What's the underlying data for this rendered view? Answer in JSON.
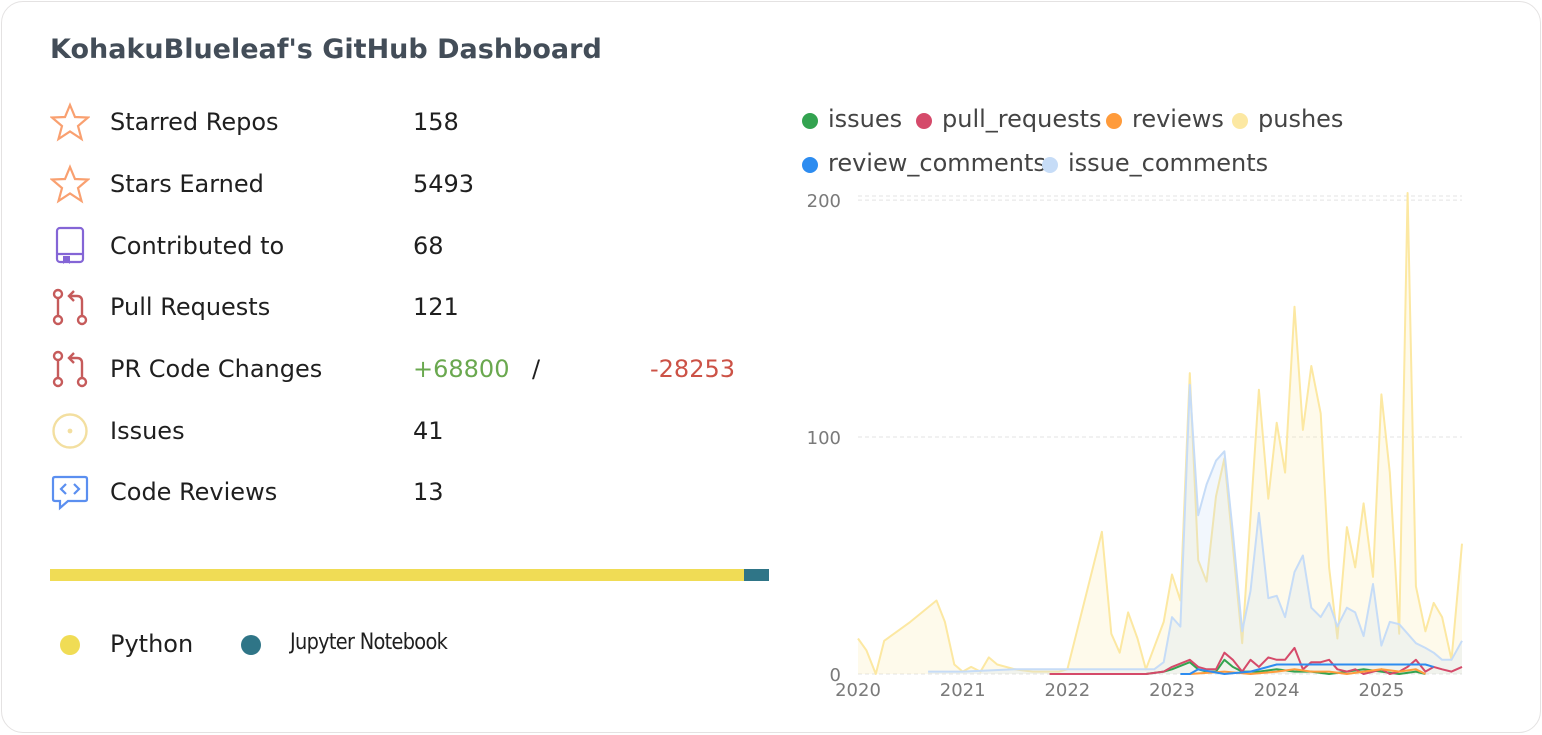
{
  "title": "KohakuBlueleaf's GitHub Dashboard",
  "stats": [
    {
      "icon": "star-icon",
      "label": "Starred Repos",
      "value": "158"
    },
    {
      "icon": "star-icon",
      "label": "Stars Earned",
      "value": "5493"
    },
    {
      "icon": "repo-icon",
      "label": "Contributed to",
      "value": "68"
    },
    {
      "icon": "pull-request-icon",
      "label": "Pull Requests",
      "value": "121"
    },
    {
      "icon": "pull-request-icon",
      "label": "PR Code Changes",
      "additions": "+68800",
      "separator": "/",
      "deletions": "-28253"
    },
    {
      "icon": "issue-icon",
      "label": "Issues",
      "value": "41"
    },
    {
      "icon": "code-review-icon",
      "label": "Code Reviews",
      "value": "13"
    }
  ],
  "languages": [
    {
      "name": "Python",
      "color": "#f0dc55",
      "share": 0.965
    },
    {
      "name": "Jupyter Notebook",
      "color": "#2f7587",
      "share": 0.035
    }
  ],
  "colors": {
    "star": "#f9a070",
    "repo": "#8465d6",
    "pull_request": "#c65b5b",
    "issue": "#f3dfa0",
    "code_review": "#5b8ff0"
  },
  "chart_data": {
    "type": "line",
    "x_ticks": [
      "2020",
      "2021",
      "2022",
      "2023",
      "2024",
      "2025"
    ],
    "y_ticks": [
      0,
      100,
      200
    ],
    "xlim": [
      2020.0,
      2025.77
    ],
    "ylim": [
      0,
      203
    ],
    "grid": "horizontal dashed",
    "legend_position": "top",
    "series": [
      {
        "name": "issues",
        "color": "#33a350",
        "fill": false,
        "x": [
          2021.83,
          2022.0,
          2022.5,
          2022.75,
          2022.92,
          2023.0,
          2023.17,
          2023.25,
          2023.33,
          2023.42,
          2023.5,
          2023.58,
          2023.67,
          2023.83,
          2024.0,
          2024.17,
          2024.33,
          2024.5,
          2024.67,
          2024.83,
          2025.0,
          2025.17,
          2025.33,
          2025.42
        ],
        "y": [
          0,
          0,
          0,
          0,
          1,
          2,
          5,
          2,
          1,
          1,
          6,
          3,
          1,
          1,
          2,
          1,
          1,
          0,
          1,
          2,
          1,
          0,
          1,
          0
        ]
      },
      {
        "name": "pull_requests",
        "color": "#d54a6a",
        "fill": false,
        "x": [
          2021.83,
          2022.0,
          2022.5,
          2022.75,
          2022.92,
          2023.0,
          2023.17,
          2023.25,
          2023.33,
          2023.42,
          2023.5,
          2023.58,
          2023.67,
          2023.75,
          2023.83,
          2023.92,
          2024.0,
          2024.08,
          2024.17,
          2024.25,
          2024.33,
          2024.42,
          2024.5,
          2024.58,
          2024.67,
          2024.75,
          2024.83,
          2024.92,
          2025.0,
          2025.08,
          2025.17,
          2025.25,
          2025.33,
          2025.42,
          2025.5,
          2025.58,
          2025.67,
          2025.77
        ],
        "y": [
          0,
          0,
          0,
          0,
          1,
          3,
          6,
          3,
          2,
          2,
          9,
          6,
          1,
          6,
          3,
          7,
          6,
          6,
          11,
          2,
          5,
          5,
          6,
          2,
          1,
          2,
          0,
          1,
          2,
          0,
          1,
          3,
          6,
          1,
          3,
          2,
          1,
          3
        ]
      },
      {
        "name": "reviews",
        "color": "#ff9b3b",
        "fill": false,
        "x": [
          2023.17,
          2023.5,
          2023.75,
          2024.0,
          2024.17,
          2024.33,
          2024.5,
          2024.67,
          2024.83,
          2025.0,
          2025.17,
          2025.33,
          2025.42
        ],
        "y": [
          0,
          1,
          0,
          1,
          2,
          1,
          1,
          0,
          1,
          2,
          1,
          2,
          0
        ]
      },
      {
        "name": "pushes",
        "color": "#fce8a2",
        "fill": true,
        "x": [
          2020.0,
          2020.08,
          2020.17,
          2020.25,
          2020.5,
          2020.75,
          2020.83,
          2020.92,
          2021.0,
          2021.08,
          2021.17,
          2021.25,
          2021.33,
          2021.5,
          2021.67,
          2021.75,
          2021.83,
          2021.92,
          2022.0,
          2022.33,
          2022.42,
          2022.5,
          2022.58,
          2022.67,
          2022.75,
          2022.92,
          2023.0,
          2023.08,
          2023.17,
          2023.25,
          2023.33,
          2023.42,
          2023.5,
          2023.67,
          2023.83,
          2023.92,
          2024.0,
          2024.08,
          2024.17,
          2024.25,
          2024.33,
          2024.42,
          2024.5,
          2024.58,
          2024.67,
          2024.75,
          2024.83,
          2024.92,
          2025.0,
          2025.08,
          2025.17,
          2025.25,
          2025.33,
          2025.42,
          2025.5,
          2025.58,
          2025.67,
          2025.77
        ],
        "y": [
          15,
          10,
          0,
          14,
          22,
          31,
          22,
          4,
          1,
          3,
          1,
          7,
          4,
          2,
          1,
          1,
          1,
          1,
          2,
          60,
          17,
          9,
          26,
          15,
          2,
          22,
          42,
          31,
          127,
          48,
          39,
          75,
          91,
          13,
          120,
          74,
          106,
          85,
          155,
          103,
          130,
          110,
          45,
          15,
          62,
          45,
          72,
          41,
          118,
          85,
          17,
          203,
          37,
          18,
          30,
          24,
          6,
          55
        ]
      },
      {
        "name": "review_comments",
        "color": "#2d8cf0",
        "fill": false,
        "x": [
          2023.08,
          2023.17,
          2023.25,
          2023.5,
          2023.75,
          2024.0,
          2024.17,
          2024.33,
          2024.5,
          2024.75,
          2025.0,
          2025.17,
          2025.33,
          2025.42,
          2025.5
        ],
        "y": [
          0,
          0,
          2,
          0,
          1,
          4,
          4,
          4,
          4,
          4,
          4,
          4,
          4,
          4,
          3
        ]
      },
      {
        "name": "issue_comments",
        "color": "#c6dcf7",
        "fill": true,
        "x": [
          2020.67,
          2021.0,
          2021.5,
          2022.0,
          2022.5,
          2022.83,
          2022.92,
          2023.0,
          2023.08,
          2023.17,
          2023.25,
          2023.33,
          2023.42,
          2023.5,
          2023.58,
          2023.67,
          2023.75,
          2023.83,
          2023.92,
          2024.0,
          2024.08,
          2024.17,
          2024.25,
          2024.33,
          2024.42,
          2024.5,
          2024.58,
          2024.67,
          2024.75,
          2024.83,
          2024.92,
          2025.0,
          2025.08,
          2025.17,
          2025.25,
          2025.33,
          2025.42,
          2025.5,
          2025.58,
          2025.67,
          2025.77
        ],
        "y": [
          1,
          1,
          2,
          2,
          2,
          2,
          5,
          24,
          20,
          122,
          67,
          80,
          90,
          94,
          60,
          18,
          35,
          68,
          32,
          33,
          24,
          43,
          50,
          28,
          24,
          30,
          20,
          28,
          26,
          16,
          38,
          12,
          22,
          21,
          17,
          13,
          11,
          9,
          6,
          6,
          14
        ]
      }
    ]
  }
}
